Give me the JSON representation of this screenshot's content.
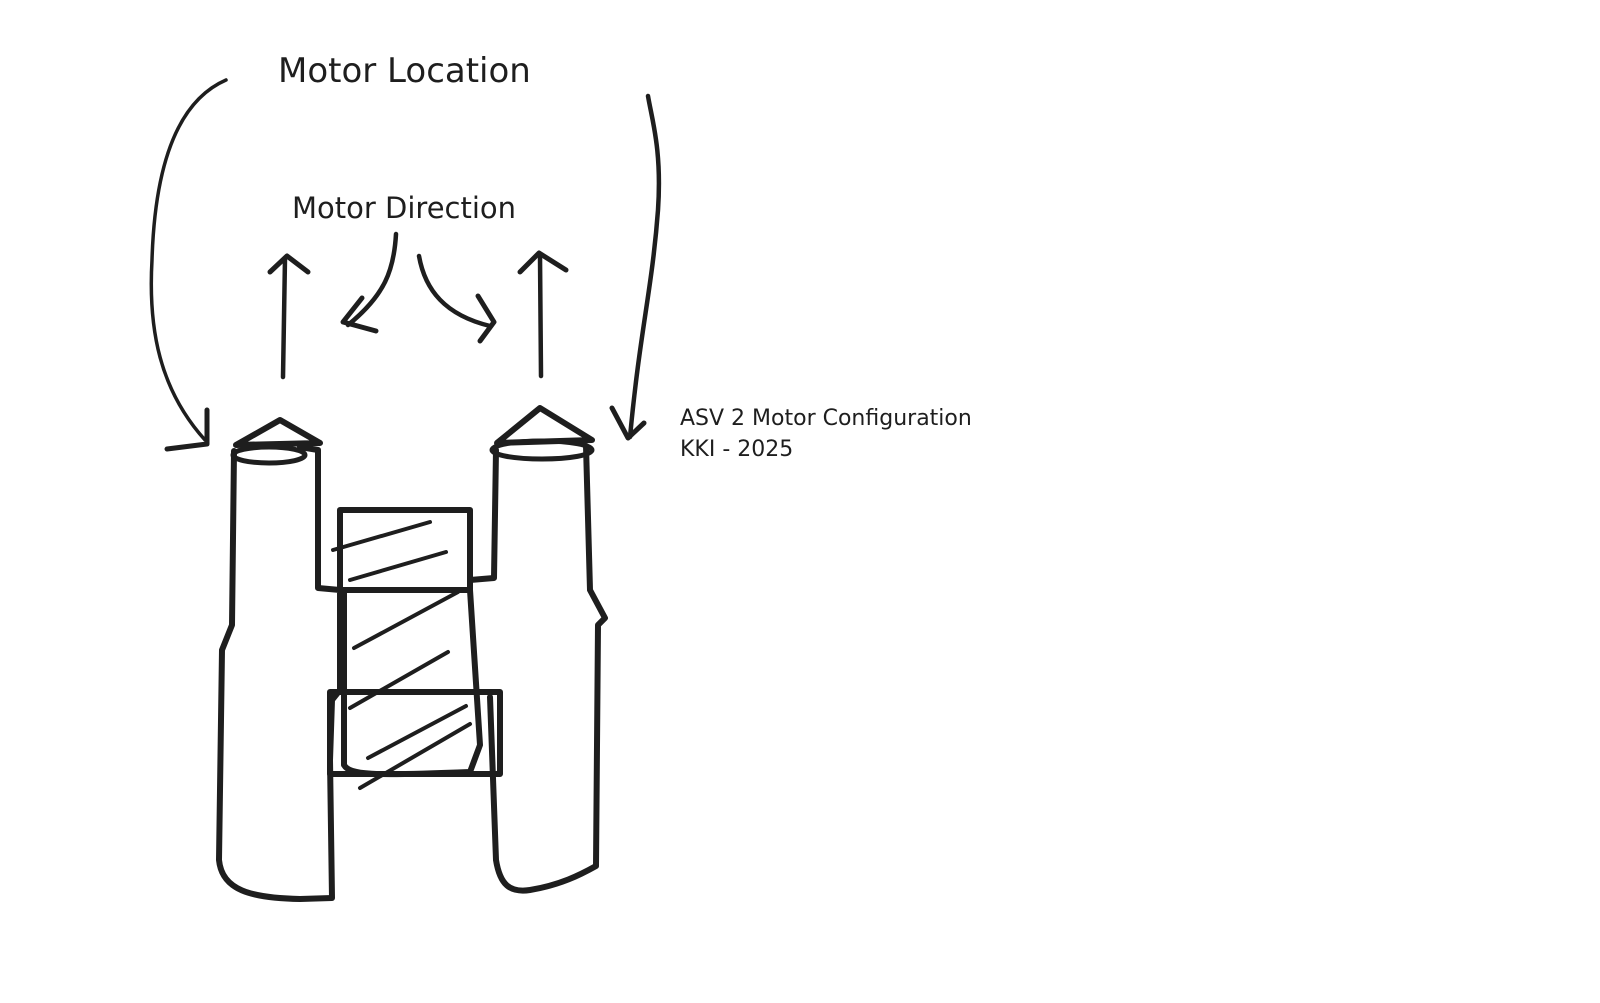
{
  "labels": {
    "motor_location": "Motor Location",
    "motor_direction": "Motor Direction",
    "config_title": "ASV 2 Motor Configuration",
    "config_subtitle": "KKI - 2025"
  },
  "colors": {
    "ink": "#1e1e1e",
    "background": "#ffffff"
  },
  "icons": {
    "straight_arrow": "arrow-up-icon",
    "curved_arrow": "curved-arrow-icon",
    "motor": "motor-cone-icon"
  }
}
